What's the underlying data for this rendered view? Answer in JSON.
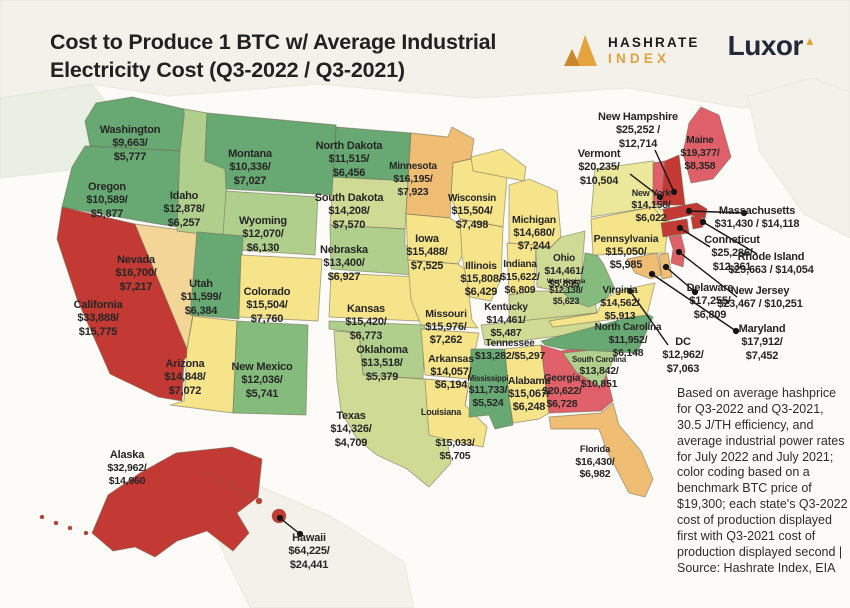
{
  "title_line1": "Cost to Produce 1 BTC w/ Average Industrial",
  "title_line2": "Electricity Cost (Q3-2022 / Q3-2021)",
  "logos": {
    "hashrate_line1": "HASHRATE",
    "hashrate_line2": "INDEX",
    "luxor": "Luxor",
    "luxor_triangle": "▲"
  },
  "footnote": "Based on average hashprice for Q3-2022 and Q3-2021, 30.5 J/TH efficiency, and average industrial power rates for July 2022 and July 2021; color coding based on a benchmark BTC price of $19,300; each state's Q3-2022 cost of production displayed first with Q3-2021 cost of production displayed second | Source: Hashrate Index, EIA",
  "colors": {
    "green": "#68A873",
    "green2": "#85BC7D",
    "lightgreen": "#B0CF8C",
    "yellowgreen": "#CFDB95",
    "paleyellow": "#EBE89C",
    "yellow": "#F6E48B",
    "tan": "#F3D598",
    "orange": "#EFBE74",
    "pink": "#E0606A",
    "red": "#C23A33",
    "accent_gold": "#E3A33C",
    "ink": "#232323",
    "leader": "#151515"
  },
  "states": [
    {
      "id": "WA",
      "name": "Washington",
      "tier": "green",
      "value_lines": [
        "$9,663/",
        "$5,777"
      ]
    },
    {
      "id": "OR",
      "name": "Oregon",
      "tier": "green",
      "value_lines": [
        "$10,589/",
        "$5,877"
      ]
    },
    {
      "id": "CA",
      "name": "California",
      "tier": "red",
      "value_lines": [
        "$33,888/",
        "$15,775"
      ]
    },
    {
      "id": "NV",
      "name": "Nevada",
      "tier": "tan",
      "value_lines": [
        "$16,700/",
        "$7,217"
      ]
    },
    {
      "id": "ID",
      "name": "Idaho",
      "tier": "lightgreen",
      "value_lines": [
        "$12,878/",
        "$6,257"
      ]
    },
    {
      "id": "MT",
      "name": "Montana",
      "tier": "green",
      "value_lines": [
        "$10,336/",
        "$7,027"
      ]
    },
    {
      "id": "WY",
      "name": "Wyoming",
      "tier": "lightgreen",
      "value_lines": [
        "$12,070/",
        "$6,130"
      ]
    },
    {
      "id": "UT",
      "name": "Utah",
      "tier": "green",
      "value_lines": [
        "$11,599/",
        "$6,384"
      ]
    },
    {
      "id": "CO",
      "name": "Colorado",
      "tier": "yellow",
      "value_lines": [
        "$15,504/",
        "$7,760"
      ]
    },
    {
      "id": "AZ",
      "name": "Arizona",
      "tier": "yellow",
      "value_lines": [
        "$14,848/",
        "$7,072"
      ]
    },
    {
      "id": "NM",
      "name": "New Mexico",
      "tier": "green2",
      "value_lines": [
        "$12,036/",
        "$5,741"
      ]
    },
    {
      "id": "ND",
      "name": "North Dakota",
      "tier": "green",
      "value_lines": [
        "$11,515/",
        "$6,456"
      ]
    },
    {
      "id": "SD",
      "name": "South Dakota",
      "tier": "yellowgreen",
      "value_lines": [
        "$14,208/",
        "$7,570"
      ]
    },
    {
      "id": "NE",
      "name": "Nebraska",
      "tier": "lightgreen",
      "value_lines": [
        "$13,400/",
        "$6,927"
      ]
    },
    {
      "id": "KS",
      "name": "Kansas",
      "tier": "yellow",
      "value_lines": [
        "$15,420/",
        "$6,773"
      ]
    },
    {
      "id": "OK",
      "name": "Oklahoma",
      "tier": "lightgreen",
      "value_lines": [
        "$13,518/",
        "$5,379"
      ]
    },
    {
      "id": "TX",
      "name": "Texas",
      "tier": "yellowgreen",
      "value_lines": [
        "$14,326/",
        "$4,709"
      ]
    },
    {
      "id": "MN",
      "name": "Minnesota",
      "tier": "orange",
      "value_lines": [
        "$16,195/",
        "$7,923"
      ]
    },
    {
      "id": "IA",
      "name": "Iowa",
      "tier": "yellow",
      "value_lines": [
        "$15,488/",
        "$7,525"
      ]
    },
    {
      "id": "MO",
      "name": "Missouri",
      "tier": "yellow",
      "value_lines": [
        "$15,976/",
        "$7,262"
      ]
    },
    {
      "id": "AR",
      "name": "Arkansas",
      "tier": "yellow",
      "value_lines": [
        "$14,057/",
        "$6,194"
      ]
    },
    {
      "id": "LA",
      "name": "Louisiana",
      "tier": "yellow",
      "value_lines": [
        "$15,033/",
        "$5,705"
      ]
    },
    {
      "id": "WI",
      "name": "Wisconsin",
      "tier": "yellow",
      "value_lines": [
        "$15,504/",
        "$7,498"
      ]
    },
    {
      "id": "IL",
      "name": "Illinois",
      "tier": "yellow",
      "value_lines": [
        "$15,808/",
        "$6,429"
      ]
    },
    {
      "id": "MI",
      "name": "Michigan",
      "tier": "yellow",
      "value_lines": [
        "$14,680/",
        "$7,244"
      ]
    },
    {
      "id": "IN",
      "name": "Indiana",
      "tier": "yellow",
      "value_lines": [
        "$15,622/",
        "$6,809"
      ]
    },
    {
      "id": "OH",
      "name": "Ohio",
      "tier": "yellowgreen",
      "value_lines": [
        "$14,461/",
        "$5,895"
      ]
    },
    {
      "id": "KY",
      "name": "Kentucky",
      "tier": "yellowgreen",
      "value_lines": [
        "$14,461/",
        "$5,487"
      ]
    },
    {
      "id": "TN",
      "name": "Tennessee",
      "tier": "yellowgreen",
      "value_lines": [
        "$13,282/$5,297"
      ]
    },
    {
      "id": "MS",
      "name": "Mississippi",
      "tier": "green",
      "value_lines": [
        "$11,733/",
        "$5,524"
      ]
    },
    {
      "id": "AL",
      "name": "Alabama",
      "tier": "yellow",
      "value_lines": [
        "$15,067/",
        "$6,248"
      ]
    },
    {
      "id": "GA",
      "name": "Georgia",
      "tier": "pink",
      "value_lines": [
        "$20,622/",
        "$6,728"
      ]
    },
    {
      "id": "FL",
      "name": "Florida",
      "tier": "orange",
      "value_lines": [
        "$16,430/",
        "$6,982"
      ]
    },
    {
      "id": "SC",
      "name": "South Carolina",
      "tier": "lightgreen",
      "value_lines": [
        "$13,842/",
        "$10,851"
      ]
    },
    {
      "id": "NC",
      "name": "North Carolina",
      "tier": "green",
      "value_lines": [
        "$11,952/",
        "$6,148"
      ]
    },
    {
      "id": "VA",
      "name": "Virginia",
      "tier": "yellow",
      "value_lines": [
        "$14,562/",
        "$5,913"
      ]
    },
    {
      "id": "WV",
      "name": "West Virginia",
      "tier": "green2",
      "value_lines": [
        "$12,138/",
        "$5,623"
      ]
    },
    {
      "id": "PA",
      "name": "Pennsylvania",
      "tier": "yellow",
      "value_lines": [
        "$15,050/",
        "$5,985"
      ]
    },
    {
      "id": "NY",
      "name": "New York",
      "tier": "paleyellow",
      "value_lines": [
        "$14,158/",
        "$6,022"
      ]
    },
    {
      "id": "ME",
      "name": "Maine",
      "tier": "pink",
      "value_lines": [
        "$19,377/",
        "$8,358"
      ]
    },
    {
      "id": "NH",
      "name": "New Hampshire",
      "tier": "red",
      "value_lines": [
        "$25,252 /",
        "$12,714"
      ]
    },
    {
      "id": "VT",
      "name": "Vermont",
      "tier": "pink",
      "value_lines": [
        "$20,235/",
        "$10,504"
      ]
    },
    {
      "id": "MA",
      "name": "Massachusetts",
      "tier": "red",
      "value_lines": [
        "$31,430 / $14,118"
      ]
    },
    {
      "id": "CT",
      "name": "Conneticut",
      "tier": "red",
      "value_lines": [
        "$25,286/",
        "$12,361"
      ]
    },
    {
      "id": "RI",
      "name": "Rhode Island",
      "tier": "red",
      "value_lines": [
        "$29,663 / $14,054"
      ]
    },
    {
      "id": "NJ",
      "name": "New Jersey",
      "tier": "pink",
      "value_lines": [
        "$23,467 / $10,251"
      ]
    },
    {
      "id": "DE",
      "name": "Delaware",
      "tier": "orange",
      "value_lines": [
        "$17,255/",
        "$6,809"
      ]
    },
    {
      "id": "MD",
      "name": "Maryland",
      "tier": "orange",
      "value_lines": [
        "$17,912/",
        "$7,452"
      ]
    },
    {
      "id": "DC",
      "name": "DC",
      "tier": "orange",
      "value_lines": [
        "$12,962/",
        "$7,063"
      ]
    },
    {
      "id": "AK",
      "name": "Alaska",
      "tier": "red",
      "value_lines": [
        "$32,962/",
        "$14,960"
      ]
    },
    {
      "id": "HI",
      "name": "Hawaii",
      "tier": "red",
      "value_lines": [
        "$64,225/",
        "$24,441"
      ]
    }
  ]
}
